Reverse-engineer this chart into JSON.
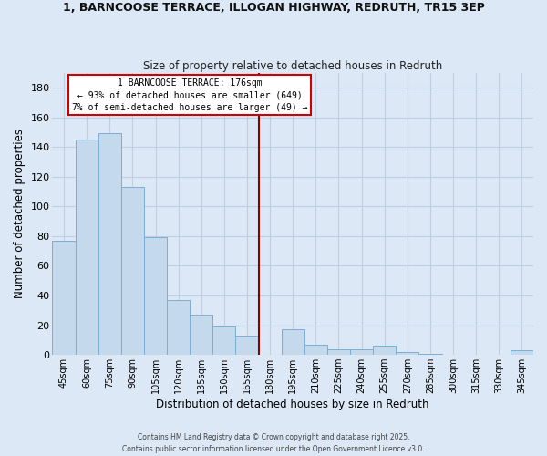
{
  "title": "1, BARNCOOSE TERRACE, ILLOGAN HIGHWAY, REDRUTH, TR15 3EP",
  "subtitle": "Size of property relative to detached houses in Redruth",
  "xlabel": "Distribution of detached houses by size in Redruth",
  "ylabel": "Number of detached properties",
  "categories": [
    "45sqm",
    "60sqm",
    "75sqm",
    "90sqm",
    "105sqm",
    "120sqm",
    "135sqm",
    "150sqm",
    "165sqm",
    "180sqm",
    "195sqm",
    "210sqm",
    "225sqm",
    "240sqm",
    "255sqm",
    "270sqm",
    "285sqm",
    "300sqm",
    "315sqm",
    "330sqm",
    "345sqm"
  ],
  "values": [
    77,
    145,
    149,
    113,
    79,
    37,
    27,
    19,
    13,
    0,
    17,
    7,
    4,
    4,
    6,
    2,
    1,
    0,
    0,
    0,
    3
  ],
  "bar_color": "#c5d9ec",
  "bar_edge_color": "#7aaed4",
  "ylim": [
    0,
    190
  ],
  "yticks": [
    0,
    20,
    40,
    60,
    80,
    100,
    120,
    140,
    160,
    180
  ],
  "vline_color": "#8b0000",
  "annotation_title": "1 BARNCOOSE TERRACE: 176sqm",
  "annotation_line1": "← 93% of detached houses are smaller (649)",
  "annotation_line2": "7% of semi-detached houses are larger (49) →",
  "annotation_box_color": "#ffffff",
  "annotation_box_edge": "#cc0000",
  "background_color": "#dce8f5",
  "grid_color": "#c0cfe0",
  "footer1": "Contains HM Land Registry data © Crown copyright and database right 2025.",
  "footer2": "Contains public sector information licensed under the Open Government Licence v3.0."
}
